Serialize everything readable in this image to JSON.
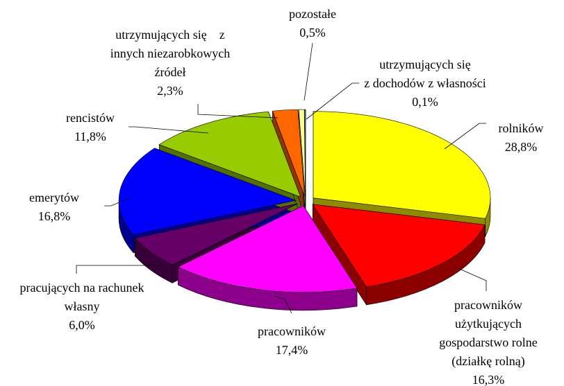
{
  "chart_data": {
    "type": "pie",
    "3d": true,
    "categories": [
      "rolników",
      "pracowników\nużytkujących\ngospodarstwo rolne\n(działkę rolną)",
      "pracowników",
      "pracujących na rachunek\nwłasny",
      "emerytów",
      "rencistów",
      "utrzymujących się    z\ninnych niezarobkowych\nźródeł",
      "pozostałe",
      "utrzymujących się\nz dochodów z własności"
    ],
    "values": [
      28.8,
      16.3,
      17.4,
      6.0,
      16.8,
      11.8,
      2.3,
      0.5,
      0.1
    ],
    "value_labels": [
      "28,8%",
      "16,3%",
      "17,4%",
      "6,0%",
      "16,8%",
      "11,8%",
      "2,3%",
      "0,5%",
      "0,1%"
    ],
    "colors": [
      "#ffff00",
      "#ff0000",
      "#ff00ff",
      "#660066",
      "#0000ff",
      "#99cc00",
      "#ff6600",
      "#ffff99",
      "#339966"
    ]
  }
}
